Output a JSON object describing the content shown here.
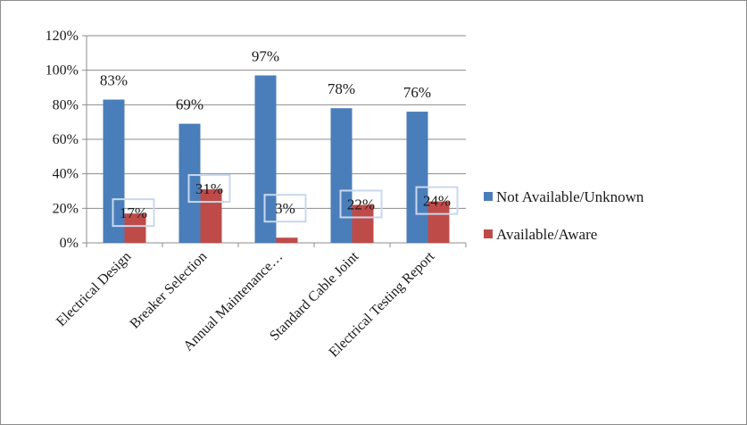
{
  "chart_data": {
    "type": "bar",
    "categories": [
      "Electrical Design",
      "Breaker Selection",
      "Annual Maintenance…",
      "Standard Cable Joint",
      "Electrical Testing Report"
    ],
    "series": [
      {
        "name": "Not Available/Unknown",
        "values": [
          83,
          69,
          97,
          78,
          76
        ],
        "labels": [
          "83%",
          "69%",
          "97%",
          "78%",
          "76%"
        ],
        "color": "#4a7ebb"
      },
      {
        "name": "Available/Aware",
        "values": [
          17,
          31,
          3,
          22,
          24
        ],
        "labels": [
          "17%",
          "31%",
          "3%",
          "22%",
          "24%"
        ],
        "color": "#be4b48"
      }
    ],
    "yticks": [
      "0%",
      "20%",
      "40%",
      "60%",
      "80%",
      "100%",
      "120%"
    ],
    "ylim": [
      0,
      120
    ],
    "grid": true,
    "legend": "right",
    "title": "",
    "xlabel": "",
    "ylabel": ""
  }
}
